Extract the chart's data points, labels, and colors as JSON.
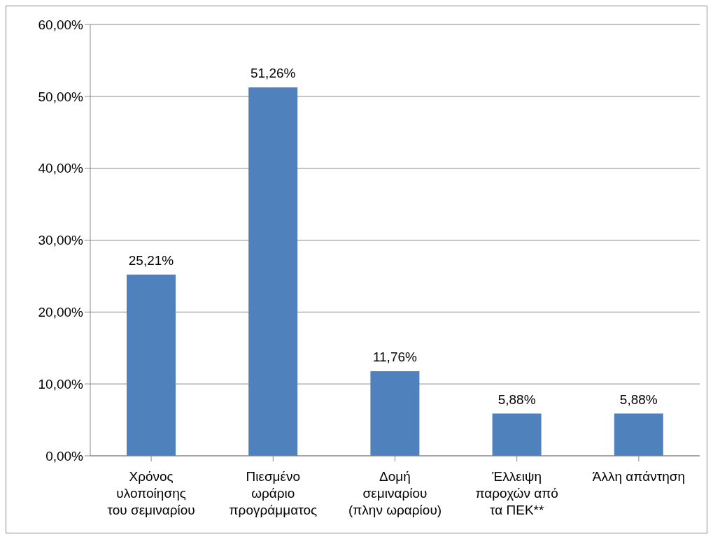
{
  "chart_data": {
    "type": "bar",
    "categories": [
      "Χρόνος\nυλοποίησης\nτου σεμιναρίου",
      "Πιεσμένο\nωράριο\nπρογράμματος",
      "Δομή\nσεμιναρίου\n(πλην ωραρίου)",
      "Έλλειψη\nπαροχών από\nτα ΠΕΚ**",
      "Άλλη απάντηση"
    ],
    "values": [
      25.21,
      51.26,
      11.76,
      5.88,
      5.88
    ],
    "value_labels": [
      "25,21%",
      "51,26%",
      "11,76%",
      "5,88%",
      "5,88%"
    ],
    "color": "#4f81bd",
    "ylim": [
      0,
      60
    ],
    "yticks": [
      {
        "value": 0,
        "label": "0,00%"
      },
      {
        "value": 10,
        "label": "10,00%"
      },
      {
        "value": 20,
        "label": "20,00%"
      },
      {
        "value": 30,
        "label": "30,00%"
      },
      {
        "value": 40,
        "label": "40,00%"
      },
      {
        "value": 50,
        "label": "50,00%"
      },
      {
        "value": 60,
        "label": "60,00%"
      }
    ],
    "grid": "y"
  }
}
